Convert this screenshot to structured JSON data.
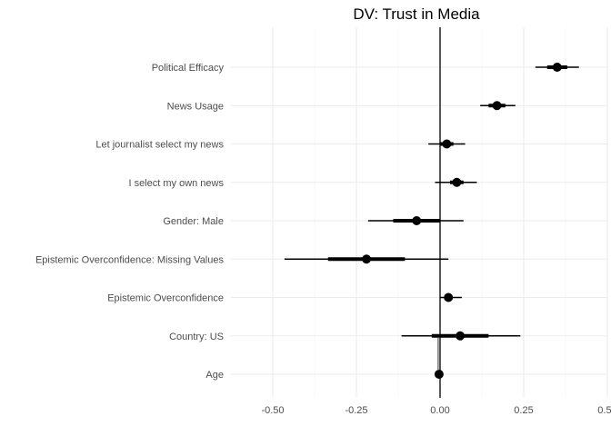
{
  "chart_data": {
    "type": "scatter",
    "subtype": "coefficient-plot",
    "title": "DV: Trust in Media",
    "xlabel": "",
    "ylabel": "",
    "xlim": [
      -0.625,
      0.5
    ],
    "xticks": [
      -0.5,
      -0.25,
      0.0,
      0.25,
      0.5
    ],
    "xtick_labels": [
      "-0.50",
      "-0.25",
      "0.00",
      "0.25",
      "0.50"
    ],
    "grid": true,
    "zero_line": 0,
    "categories": [
      "Political Efficacy",
      "News Usage",
      "Let journalist select my news",
      "I select my own news",
      "Gender: Male",
      "Epistemic Overconfidence: Missing Values",
      "Epistemic Overconfidence",
      "Country: US",
      "Age"
    ],
    "series": [
      {
        "estimate": [
          0.35,
          0.17,
          0.02,
          0.05,
          -0.07,
          -0.22,
          0.025,
          0.06,
          -0.003
        ],
        "ci_inner_low": [
          0.32,
          0.145,
          0.0,
          0.03,
          -0.14,
          -0.335,
          0.015,
          -0.025,
          -0.004
        ],
        "ci_inner_high": [
          0.38,
          0.195,
          0.04,
          0.07,
          0.0,
          -0.105,
          0.035,
          0.145,
          -0.002
        ],
        "ci_outer_low": [
          0.285,
          0.12,
          -0.035,
          -0.015,
          -0.215,
          -0.465,
          0.0,
          -0.115,
          -0.005
        ],
        "ci_outer_high": [
          0.415,
          0.225,
          0.075,
          0.11,
          0.07,
          0.025,
          0.065,
          0.24,
          -0.001
        ]
      }
    ],
    "colors": {
      "point": "#000000",
      "gridline": "#ebebeb",
      "background": "#ffffff"
    }
  }
}
